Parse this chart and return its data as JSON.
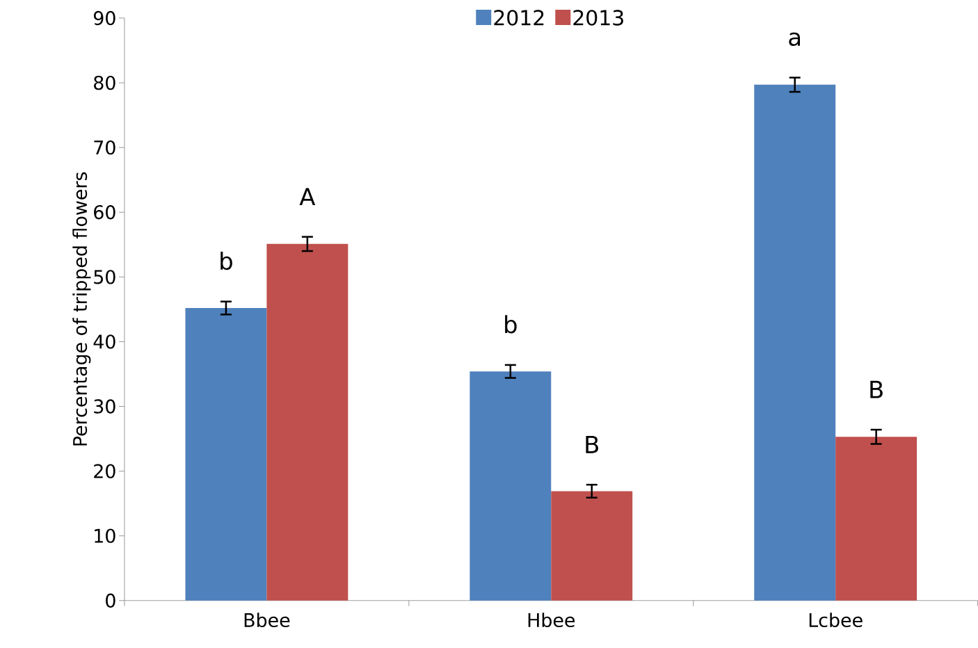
{
  "chart_data": {
    "type": "bar",
    "ylabel": "Percentage of tripped flowers",
    "categories": [
      "Bbee",
      "Hbee",
      "Lcbee"
    ],
    "series": [
      {
        "name": "2012",
        "color": "#4f81bd",
        "values": [
          45.2,
          35.4,
          79.7
        ],
        "errors": [
          1,
          1,
          1.1
        ],
        "value_labels": [
          "b",
          "b",
          "a"
        ]
      },
      {
        "name": "2013",
        "color": "#c0504d",
        "values": [
          55.1,
          16.9,
          25.3
        ],
        "errors": [
          1.1,
          1,
          1.1
        ],
        "value_labels": [
          "A",
          "B",
          "B"
        ]
      }
    ],
    "ylim": [
      0,
      90
    ],
    "yticks": [
      0,
      10,
      20,
      30,
      40,
      50,
      60,
      70,
      80,
      90
    ],
    "legend": "top",
    "grid": false
  }
}
